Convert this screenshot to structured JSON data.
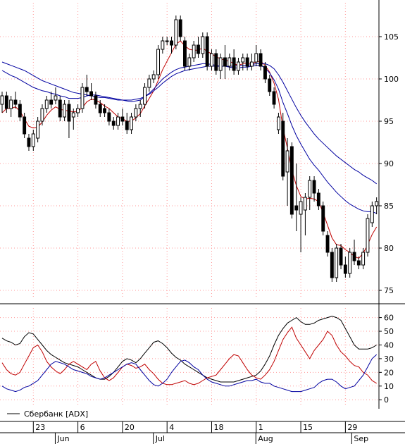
{
  "legend": {
    "label": "Сбербанк [ADX]"
  },
  "colors": {
    "up": "#ffffff",
    "down": "#000000",
    "ma_fast": "#c00000",
    "ma_slow": "#0000a0",
    "adx": "#000000",
    "plus_di": "#c00000",
    "minus_di": "#0000a0",
    "grid": "#ff9999"
  },
  "chart_data": [
    {
      "type": "candlestick",
      "title": "",
      "ylim": [
        74,
        109
      ],
      "y_ticks": [
        75,
        80,
        85,
        90,
        95,
        100,
        105
      ],
      "x_ticks": [
        "23",
        "6",
        "20",
        "4",
        "18",
        "1",
        "15",
        "29"
      ],
      "x_tick_bars": [
        7,
        17,
        27,
        37,
        47,
        57,
        67,
        77
      ],
      "month_labels": [
        "Jun",
        "Jul",
        "Aug",
        "Sep"
      ],
      "month_bars": [
        13.5,
        35.5,
        58.5,
        80
      ],
      "grid": true,
      "candles": [
        {
          "o": 97,
          "h": 98.5,
          "l": 96,
          "c": 98
        },
        {
          "o": 98,
          "h": 98.5,
          "l": 96,
          "c": 96.5
        },
        {
          "o": 96.5,
          "h": 98,
          "l": 95.5,
          "c": 97.5
        },
        {
          "o": 97.5,
          "h": 98.5,
          "l": 96.5,
          "c": 97
        },
        {
          "o": 97,
          "h": 97.5,
          "l": 95,
          "c": 95.5
        },
        {
          "o": 95.5,
          "h": 96,
          "l": 93,
          "c": 93.5
        },
        {
          "o": 93,
          "h": 93.5,
          "l": 91.5,
          "c": 92
        },
        {
          "o": 92,
          "h": 94,
          "l": 91.5,
          "c": 93.5
        },
        {
          "o": 93,
          "h": 95.5,
          "l": 92.5,
          "c": 95
        },
        {
          "o": 95,
          "h": 97,
          "l": 94.5,
          "c": 96.5
        },
        {
          "o": 96.5,
          "h": 98,
          "l": 96,
          "c": 97.5
        },
        {
          "o": 97.5,
          "h": 98.5,
          "l": 96.5,
          "c": 97
        },
        {
          "o": 97.5,
          "h": 99,
          "l": 97,
          "c": 98
        },
        {
          "o": 97.5,
          "h": 98,
          "l": 95,
          "c": 95.5
        },
        {
          "o": 95.5,
          "h": 97.5,
          "l": 95,
          "c": 97
        },
        {
          "o": 97,
          "h": 97.5,
          "l": 93,
          "c": 95
        },
        {
          "o": 95.5,
          "h": 96.5,
          "l": 94,
          "c": 96
        },
        {
          "o": 96,
          "h": 97,
          "l": 95.5,
          "c": 96.5
        },
        {
          "o": 96.5,
          "h": 99.5,
          "l": 96,
          "c": 99
        },
        {
          "o": 99,
          "h": 100.5,
          "l": 98,
          "c": 98.5
        },
        {
          "o": 98.5,
          "h": 99.5,
          "l": 97.5,
          "c": 98
        },
        {
          "o": 98,
          "h": 98.5,
          "l": 96.5,
          "c": 97
        },
        {
          "o": 97,
          "h": 97.5,
          "l": 95.5,
          "c": 96
        },
        {
          "o": 96.5,
          "h": 97,
          "l": 95.5,
          "c": 96
        },
        {
          "o": 96,
          "h": 96.5,
          "l": 94.5,
          "c": 95
        },
        {
          "o": 95,
          "h": 95.5,
          "l": 94,
          "c": 94.5
        },
        {
          "o": 94.5,
          "h": 96,
          "l": 94,
          "c": 95.5
        },
        {
          "o": 95.5,
          "h": 96.5,
          "l": 94.5,
          "c": 95
        },
        {
          "o": 95,
          "h": 96,
          "l": 93.5,
          "c": 94
        },
        {
          "o": 94,
          "h": 96,
          "l": 93.5,
          "c": 95.5
        },
        {
          "o": 95.5,
          "h": 97,
          "l": 95,
          "c": 96.5
        },
        {
          "o": 96.5,
          "h": 97.5,
          "l": 95.5,
          "c": 97
        },
        {
          "o": 97,
          "h": 99.5,
          "l": 96.5,
          "c": 99
        },
        {
          "o": 99,
          "h": 100.5,
          "l": 98.5,
          "c": 100
        },
        {
          "o": 100,
          "h": 101,
          "l": 99.5,
          "c": 100.5
        },
        {
          "o": 100.5,
          "h": 104,
          "l": 100,
          "c": 103.5
        },
        {
          "o": 103.5,
          "h": 105,
          "l": 103,
          "c": 104.5
        },
        {
          "o": 104.5,
          "h": 105,
          "l": 104,
          "c": 104.5
        },
        {
          "o": 104.5,
          "h": 105,
          "l": 103,
          "c": 104
        },
        {
          "o": 104,
          "h": 107.5,
          "l": 103.5,
          "c": 107
        },
        {
          "o": 107,
          "h": 107.5,
          "l": 104.5,
          "c": 105
        },
        {
          "o": 104.5,
          "h": 105,
          "l": 101,
          "c": 101.5
        },
        {
          "o": 101.5,
          "h": 103,
          "l": 101,
          "c": 102.5
        },
        {
          "o": 102.5,
          "h": 104.5,
          "l": 102,
          "c": 104
        },
        {
          "o": 104,
          "h": 105,
          "l": 102.5,
          "c": 103
        },
        {
          "o": 103,
          "h": 105.5,
          "l": 102.5,
          "c": 105
        },
        {
          "o": 105,
          "h": 105.5,
          "l": 101,
          "c": 101.5
        },
        {
          "o": 101.5,
          "h": 103.5,
          "l": 101,
          "c": 103
        },
        {
          "o": 103,
          "h": 103.5,
          "l": 100.5,
          "c": 101
        },
        {
          "o": 101,
          "h": 103,
          "l": 100,
          "c": 102.5
        },
        {
          "o": 102.5,
          "h": 104,
          "l": 100,
          "c": 101.5
        },
        {
          "o": 101.5,
          "h": 103,
          "l": 101,
          "c": 102.5
        },
        {
          "o": 102.5,
          "h": 103.5,
          "l": 100.5,
          "c": 101
        },
        {
          "o": 101,
          "h": 102.5,
          "l": 100.5,
          "c": 102
        },
        {
          "o": 102,
          "h": 103,
          "l": 101,
          "c": 102.5
        },
        {
          "o": 102.5,
          "h": 103,
          "l": 101,
          "c": 101.5
        },
        {
          "o": 101.5,
          "h": 103,
          "l": 101,
          "c": 102
        },
        {
          "o": 102,
          "h": 104,
          "l": 101.5,
          "c": 103
        },
        {
          "o": 103,
          "h": 103.5,
          "l": 101,
          "c": 101.5
        },
        {
          "o": 101.5,
          "h": 102,
          "l": 99.5,
          "c": 100
        },
        {
          "o": 100,
          "h": 100.5,
          "l": 98,
          "c": 98.5
        },
        {
          "o": 98.5,
          "h": 99,
          "l": 96.5,
          "c": 97
        },
        {
          "o": 94,
          "h": 96,
          "l": 93.5,
          "c": 95.5
        },
        {
          "o": 95,
          "h": 96,
          "l": 88,
          "c": 88.5
        },
        {
          "o": 89,
          "h": 93,
          "l": 85,
          "c": 91.5
        },
        {
          "o": 92,
          "h": 92.5,
          "l": 83.5,
          "c": 84
        },
        {
          "o": 85,
          "h": 90,
          "l": 82,
          "c": 84.5
        },
        {
          "o": 84,
          "h": 86,
          "l": 79.5,
          "c": 85.5
        },
        {
          "o": 84.5,
          "h": 86.5,
          "l": 81.5,
          "c": 86
        },
        {
          "o": 86,
          "h": 88.5,
          "l": 84.5,
          "c": 88
        },
        {
          "o": 88,
          "h": 88.5,
          "l": 85.5,
          "c": 86.5
        },
        {
          "o": 86.5,
          "h": 87,
          "l": 84.5,
          "c": 85
        },
        {
          "o": 85,
          "h": 85.5,
          "l": 81.5,
          "c": 82
        },
        {
          "o": 81.5,
          "h": 82,
          "l": 79,
          "c": 79.5
        },
        {
          "o": 79.5,
          "h": 80,
          "l": 76,
          "c": 76.5
        },
        {
          "o": 76.5,
          "h": 80.5,
          "l": 76,
          "c": 80
        },
        {
          "o": 80,
          "h": 80.5,
          "l": 77.5,
          "c": 78
        },
        {
          "o": 78,
          "h": 79,
          "l": 76.5,
          "c": 77
        },
        {
          "o": 77,
          "h": 80,
          "l": 76.5,
          "c": 79.5
        },
        {
          "o": 79.5,
          "h": 81,
          "l": 78,
          "c": 78.5
        },
        {
          "o": 78.5,
          "h": 79,
          "l": 77.5,
          "c": 78
        },
        {
          "o": 78,
          "h": 80,
          "l": 77.5,
          "c": 79.5
        },
        {
          "o": 79.5,
          "h": 84,
          "l": 79,
          "c": 83.5
        },
        {
          "o": 83,
          "h": 85.5,
          "l": 82.5,
          "c": 85
        },
        {
          "o": 85,
          "h": 86,
          "l": 84,
          "c": 85.5
        }
      ],
      "series": [
        {
          "values": [
            96,
            96.5,
            96.5,
            96.7,
            96.2,
            95.3,
            94.4,
            94.2,
            94.3,
            94.9,
            95.7,
            96.3,
            96.7,
            96.4,
            96.3,
            96.2,
            96.1,
            96.2,
            96.6,
            97.3,
            97.6,
            97.5,
            97.2,
            96.8,
            96.5,
            96,
            95.5,
            95.3,
            95,
            95,
            95.4,
            95.9,
            96.8,
            97.7,
            98.6,
            99.8,
            101.1,
            102.1,
            103.1,
            104.1,
            104.5,
            103.9,
            103.5,
            103.4,
            103.4,
            103.7,
            103.2,
            103,
            102.6,
            102.4,
            102.2,
            102.1,
            101.8,
            101.6,
            101.8,
            101.9,
            101.8,
            102,
            102.1,
            101.6,
            100.8,
            99.5,
            97.6,
            94.2,
            91.8,
            89.2,
            87.4,
            86.1,
            85.8,
            85.9,
            85.8,
            85.5,
            84.2,
            82.7,
            81.2,
            80.4,
            80.3,
            79.8,
            79.5,
            79,
            78.8,
            79.4,
            80.4,
            81.6,
            82.5
          ]
        },
        {
          "values": [
            101,
            100.7,
            100.4,
            100.2,
            99.9,
            99.6,
            99.3,
            99,
            98.8,
            98.6,
            98.5,
            98.3,
            98.2,
            98,
            97.9,
            97.7,
            97.7,
            97.7,
            97.8,
            98,
            98.1,
            98.1,
            98,
            97.9,
            97.8,
            97.7,
            97.6,
            97.5,
            97.4,
            97.3,
            97.4,
            97.5,
            97.9,
            98.3,
            98.8,
            99.4,
            100,
            100.4,
            100.8,
            101.1,
            101.3,
            101.4,
            101.5,
            101.6,
            101.7,
            101.8,
            101.8,
            101.7,
            101.6,
            101.5,
            101.5,
            101.4,
            101.3,
            101.3,
            101.4,
            101.4,
            101.5,
            101.6,
            101.6,
            101.3,
            100.7,
            99.9,
            98.8,
            97.2,
            95.9,
            94.5,
            93.3,
            92.3,
            91.4,
            90.5,
            89.8,
            89.2,
            88.5,
            87.8,
            87.2,
            86.6,
            86.1,
            85.6,
            85.2,
            84.9,
            84.6,
            84.4,
            84.3,
            84.3,
            84.1
          ]
        },
        {
          "values": [
            102,
            101.8,
            101.6,
            101.4,
            101.2,
            101,
            100.7,
            100.4,
            100.1,
            99.8,
            99.6,
            99.4,
            99.2,
            99,
            98.8,
            98.6,
            98.4,
            98.3,
            98.2,
            98.1,
            98,
            97.9,
            97.8,
            97.8,
            97.7,
            97.6,
            97.5,
            97.5,
            97.5,
            97.5,
            97.6,
            97.7,
            97.9,
            98.2,
            98.6,
            99,
            99.5,
            99.9,
            100.3,
            100.6,
            100.8,
            101,
            101.1,
            101.2,
            101.3,
            101.4,
            101.5,
            101.5,
            101.5,
            101.5,
            101.5,
            101.5,
            101.5,
            101.6,
            101.6,
            101.6,
            101.7,
            101.8,
            101.8,
            101.8,
            101.6,
            101.2,
            100.5,
            99.6,
            98.6,
            97.6,
            96.6,
            95.7,
            94.9,
            94.2,
            93.5,
            92.9,
            92.4,
            91.9,
            91.4,
            90.9,
            90.5,
            90.1,
            89.7,
            89.3,
            89,
            88.6,
            88.3,
            88,
            87.6
          ]
        }
      ]
    },
    {
      "type": "line",
      "title": "",
      "ylim": [
        -4,
        67
      ],
      "y_ticks": [
        0,
        10,
        20,
        30,
        40,
        50,
        60
      ],
      "grid": true,
      "series": [
        {
          "values": [
            45,
            43,
            42,
            40,
            41,
            46,
            49,
            48,
            44,
            40,
            36,
            33,
            31,
            29,
            27,
            26,
            25,
            24,
            22,
            20,
            18,
            16,
            15,
            15,
            17,
            20,
            24,
            28,
            30,
            29,
            27,
            30,
            34,
            38,
            42,
            43,
            41,
            38,
            34,
            31,
            29,
            26,
            24,
            22,
            20,
            18,
            16,
            15,
            14,
            13,
            13,
            13,
            13,
            14,
            15,
            16,
            17,
            18,
            21,
            26,
            32,
            40,
            47,
            52,
            56,
            58,
            60,
            57,
            55,
            55,
            56,
            58,
            59,
            60,
            61,
            60,
            58,
            52,
            46,
            40,
            37,
            37,
            37,
            38,
            40
          ]
        },
        {
          "values": [
            27,
            22,
            19,
            18,
            20,
            26,
            32,
            38,
            40,
            35,
            28,
            24,
            21,
            19,
            22,
            26,
            28,
            26,
            24,
            22,
            26,
            28,
            21,
            16,
            14,
            16,
            20,
            24,
            26,
            25,
            23,
            24,
            26,
            22,
            19,
            15,
            12,
            11,
            11,
            12,
            13,
            14,
            12,
            11,
            12,
            14,
            16,
            17,
            18,
            22,
            26,
            30,
            33,
            32,
            27,
            22,
            18,
            16,
            15,
            18,
            22,
            28,
            36,
            44,
            49,
            53,
            45,
            40,
            35,
            30,
            36,
            40,
            44,
            50,
            47,
            40,
            35,
            32,
            28,
            25,
            24,
            20,
            18,
            14,
            12
          ]
        },
        {
          "values": [
            10,
            8,
            7,
            6,
            7,
            9,
            10,
            12,
            14,
            18,
            22,
            26,
            28,
            27,
            26,
            24,
            22,
            21,
            20,
            19,
            17,
            16,
            15,
            16,
            18,
            20,
            22,
            24,
            26,
            27,
            26,
            22,
            18,
            14,
            11,
            10,
            12,
            15,
            20,
            24,
            28,
            29,
            27,
            24,
            22,
            18,
            15,
            13,
            12,
            11,
            10,
            10,
            11,
            12,
            13,
            14,
            14,
            15,
            13,
            12,
            12,
            10,
            9,
            8,
            7,
            6,
            6,
            6,
            7,
            8,
            9,
            12,
            14,
            15,
            15,
            13,
            10,
            8,
            9,
            10,
            14,
            18,
            24,
            30,
            33
          ]
        }
      ]
    }
  ]
}
